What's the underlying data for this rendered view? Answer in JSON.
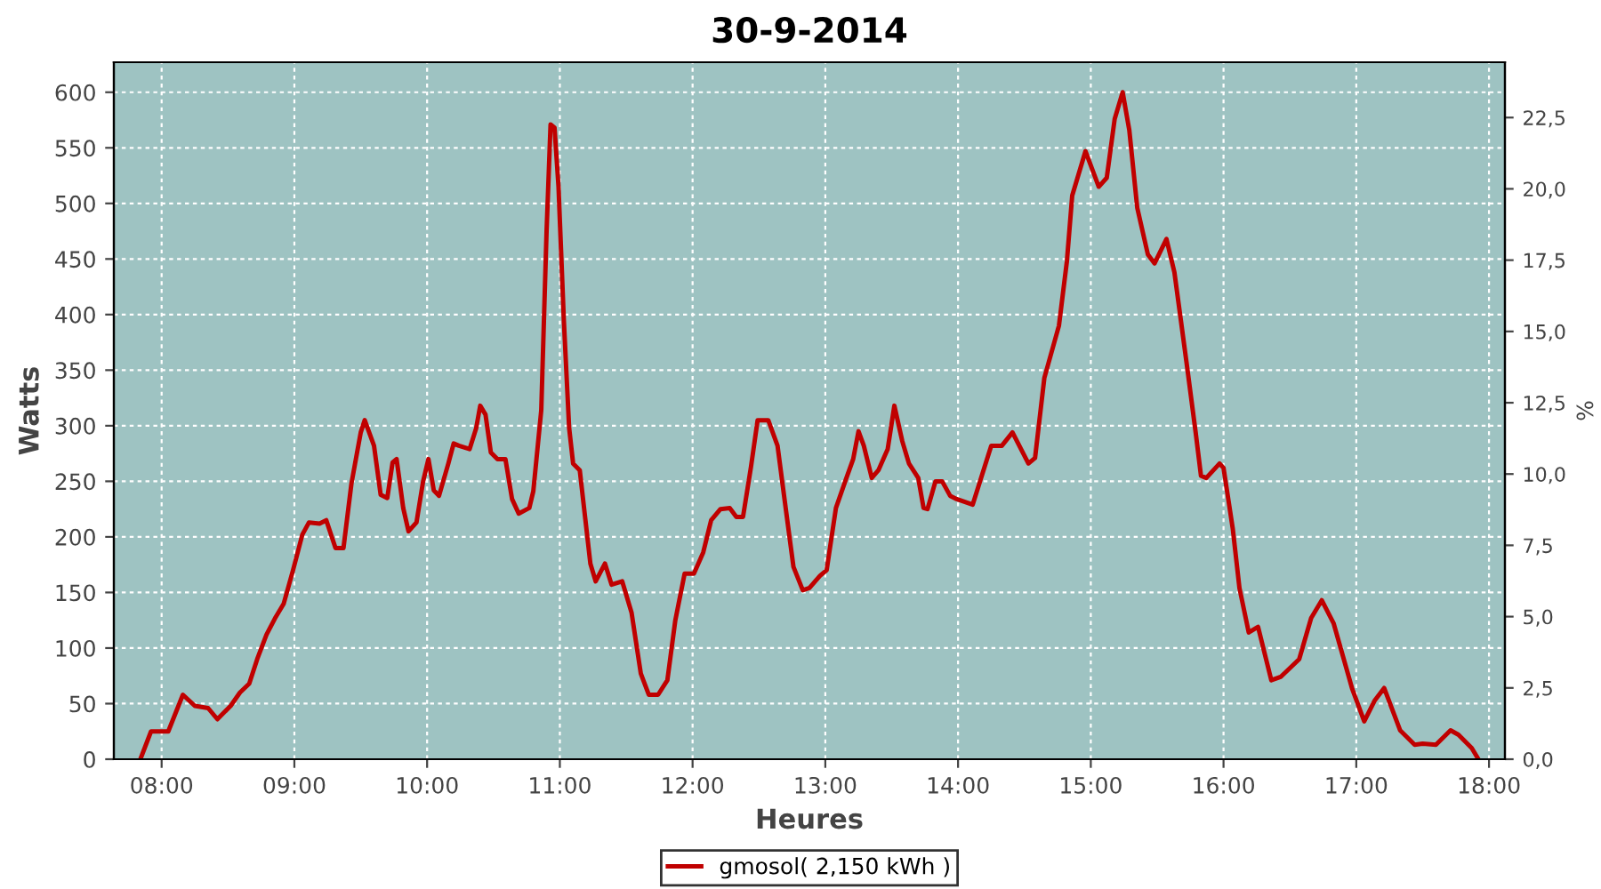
{
  "chart_data": {
    "type": "line",
    "title": "30-9-2014",
    "xlabel": "Heures",
    "ylabel": "Watts",
    "y2label": "%",
    "series": [
      {
        "name": "gmosol( 2,150 kWh )",
        "color": "#c00000",
        "x": [
          7.84,
          7.92,
          8.05,
          8.16,
          8.25,
          8.35,
          8.42,
          8.52,
          8.59,
          8.66,
          8.72,
          8.79,
          8.86,
          8.92,
          8.99,
          9.06,
          9.11,
          9.19,
          9.24,
          9.31,
          9.37,
          9.43,
          9.5,
          9.53,
          9.6,
          9.65,
          9.7,
          9.74,
          9.77,
          9.82,
          9.86,
          9.92,
          9.97,
          10.01,
          10.05,
          10.09,
          10.16,
          10.2,
          10.24,
          10.32,
          10.37,
          10.4,
          10.44,
          10.48,
          10.53,
          10.59,
          10.64,
          10.69,
          10.77,
          10.8,
          10.86,
          10.9,
          10.92,
          10.93,
          10.96,
          10.99,
          11.03,
          11.07,
          11.1,
          11.15,
          11.19,
          11.23,
          11.27,
          11.34,
          11.39,
          11.47,
          11.54,
          11.61,
          11.67,
          11.74,
          11.81,
          11.87,
          11.94,
          12.01,
          12.08,
          12.14,
          12.21,
          12.28,
          12.33,
          12.38,
          12.44,
          12.49,
          12.57,
          12.64,
          12.71,
          12.76,
          12.83,
          12.88,
          12.96,
          13.01,
          13.08,
          13.15,
          13.21,
          13.25,
          13.29,
          13.35,
          13.4,
          13.47,
          13.52,
          13.58,
          13.63,
          13.7,
          13.74,
          13.77,
          13.83,
          13.88,
          13.94,
          13.99,
          14.11,
          14.25,
          14.33,
          14.41,
          14.53,
          14.58,
          14.65,
          14.76,
          14.82,
          14.86,
          14.96,
          15.06,
          15.12,
          15.18,
          15.24,
          15.29,
          15.35,
          15.43,
          15.48,
          15.57,
          15.63,
          15.72,
          15.79,
          15.83,
          15.87,
          15.97,
          16.0,
          16.07,
          16.12,
          16.19,
          16.26,
          16.36,
          16.43,
          16.57,
          16.66,
          16.74,
          16.83,
          16.97,
          17.06,
          17.14,
          17.21,
          17.33,
          17.44,
          17.5,
          17.6,
          17.71,
          17.77,
          17.87,
          17.92
        ],
        "values": [
          0,
          25,
          25,
          58,
          48,
          46,
          36,
          48,
          60,
          68,
          90,
          112,
          128,
          140,
          170,
          202,
          213,
          212,
          215,
          190,
          190,
          248,
          294,
          305,
          282,
          238,
          235,
          267,
          270,
          226,
          205,
          213,
          250,
          270,
          242,
          237,
          266,
          284,
          282,
          279,
          298,
          318,
          310,
          276,
          270,
          270,
          234,
          221,
          226,
          241,
          314,
          475,
          539,
          571,
          568,
          515,
          395,
          298,
          266,
          260,
          218,
          176,
          160,
          176,
          157,
          160,
          132,
          77,
          58,
          58,
          71,
          125,
          167,
          167,
          186,
          215,
          225,
          226,
          218,
          218,
          263,
          305,
          305,
          282,
          218,
          173,
          152,
          154,
          165,
          170,
          226,
          250,
          270,
          295,
          282,
          253,
          260,
          279,
          318,
          286,
          266,
          253,
          226,
          225,
          250,
          250,
          237,
          234,
          229,
          282,
          282,
          294,
          266,
          271,
          343,
          390,
          448,
          507,
          547,
          515,
          523,
          576,
          600,
          566,
          496,
          454,
          446,
          468,
          438,
          358,
          294,
          255,
          253,
          266,
          262,
          207,
          154,
          114,
          119,
          71,
          74,
          90,
          127,
          143,
          122,
          63,
          34,
          53,
          64,
          26,
          13,
          14,
          13,
          26,
          22,
          10,
          0
        ]
      }
    ],
    "xlim": [
      7.64,
      18.12
    ],
    "xticks": [
      {
        "value": 8,
        "label": "08:00"
      },
      {
        "value": 9,
        "label": "09:00"
      },
      {
        "value": 10,
        "label": "10:00"
      },
      {
        "value": 11,
        "label": "11:00"
      },
      {
        "value": 12,
        "label": "12:00"
      },
      {
        "value": 13,
        "label": "13:00"
      },
      {
        "value": 14,
        "label": "14:00"
      },
      {
        "value": 15,
        "label": "15:00"
      },
      {
        "value": 16,
        "label": "16:00"
      },
      {
        "value": 17,
        "label": "17:00"
      },
      {
        "value": 18,
        "label": "18:00"
      }
    ],
    "ylim": [
      0,
      627
    ],
    "yticks": [
      0,
      50,
      100,
      150,
      200,
      250,
      300,
      350,
      400,
      450,
      500,
      550,
      600
    ],
    "y2lim": [
      0,
      24.44
    ],
    "y2ticks": [
      {
        "value": 0,
        "label": "0,0"
      },
      {
        "value": 2.5,
        "label": "2,5"
      },
      {
        "value": 5,
        "label": "5,0"
      },
      {
        "value": 7.5,
        "label": "7,5"
      },
      {
        "value": 10,
        "label": "10,0"
      },
      {
        "value": 12.5,
        "label": "12,5"
      },
      {
        "value": 15,
        "label": "15,0"
      },
      {
        "value": 17.5,
        "label": "17,5"
      },
      {
        "value": 20,
        "label": "20,0"
      },
      {
        "value": 22.5,
        "label": "22,5"
      }
    ],
    "grid": true,
    "legend": "bottom",
    "marker": "none",
    "line_style": "solid"
  }
}
